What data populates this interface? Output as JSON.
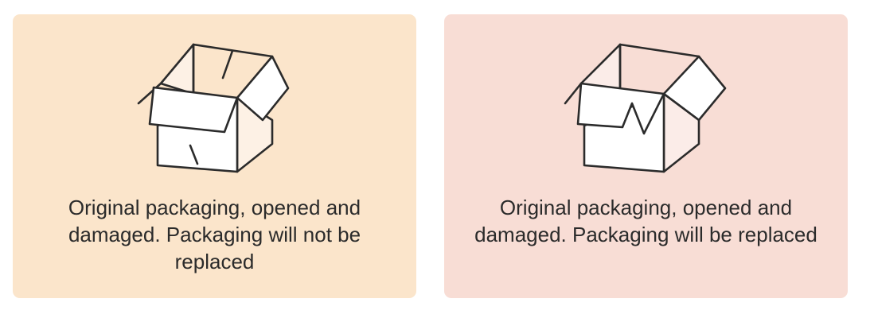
{
  "options": [
    {
      "label": "Original packaging, opened and damaged. Packaging will not be replaced",
      "icon": "open-damaged-box-icon",
      "background": "#fbe5cb"
    },
    {
      "label": "Original packaging, opened and damaged. Packaging will be replaced",
      "icon": "open-damaged-box-icon",
      "background": "#f8ddd5"
    }
  ]
}
